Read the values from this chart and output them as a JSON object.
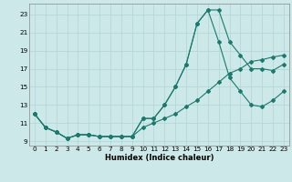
{
  "xlabel": "Humidex (Indice chaleur)",
  "background_color": "#cce8e8",
  "grid_color": "#b0d4d4",
  "line_color": "#1a7a6e",
  "xlim_min": -0.5,
  "xlim_max": 23.5,
  "ylim_min": 8.5,
  "ylim_max": 24.2,
  "xticks": [
    0,
    1,
    2,
    3,
    4,
    5,
    6,
    7,
    8,
    9,
    10,
    11,
    12,
    13,
    14,
    15,
    16,
    17,
    18,
    19,
    20,
    21,
    22,
    23
  ],
  "yticks": [
    9,
    11,
    13,
    15,
    17,
    19,
    21,
    23
  ],
  "line1_x": [
    0,
    1,
    2,
    3,
    4,
    5,
    6,
    7,
    8,
    9,
    10,
    11,
    12,
    13,
    14,
    15,
    16,
    17,
    18,
    19,
    20,
    21,
    22,
    23
  ],
  "line1_y": [
    12.0,
    10.5,
    10.0,
    9.3,
    9.7,
    9.7,
    9.5,
    9.5,
    9.5,
    9.5,
    11.5,
    11.5,
    13.0,
    15.0,
    17.5,
    22.0,
    23.5,
    23.5,
    20.0,
    18.5,
    17.0,
    17.0,
    16.8,
    17.5
  ],
  "line2_x": [
    0,
    1,
    2,
    3,
    4,
    5,
    6,
    7,
    8,
    9,
    10,
    11,
    12,
    13,
    14,
    15,
    16,
    17,
    18,
    19,
    20,
    21,
    22,
    23
  ],
  "line2_y": [
    12.0,
    10.5,
    10.0,
    9.3,
    9.7,
    9.7,
    9.5,
    9.5,
    9.5,
    9.5,
    11.5,
    11.5,
    13.0,
    15.0,
    17.5,
    22.0,
    23.5,
    20.0,
    16.0,
    14.5,
    13.0,
    12.8,
    13.5,
    14.5
  ],
  "line3_x": [
    0,
    1,
    2,
    3,
    4,
    5,
    6,
    7,
    8,
    9,
    10,
    11,
    12,
    13,
    14,
    15,
    16,
    17,
    18,
    19,
    20,
    21,
    22,
    23
  ],
  "line3_y": [
    12.0,
    10.5,
    10.0,
    9.3,
    9.7,
    9.7,
    9.5,
    9.5,
    9.5,
    9.5,
    10.5,
    11.0,
    11.5,
    12.0,
    12.8,
    13.5,
    14.5,
    15.5,
    16.5,
    17.0,
    17.8,
    18.0,
    18.3,
    18.5
  ],
  "xlabel_fontsize": 6.0,
  "tick_fontsize": 5.2,
  "marker_size": 2.0,
  "line_width": 0.8
}
